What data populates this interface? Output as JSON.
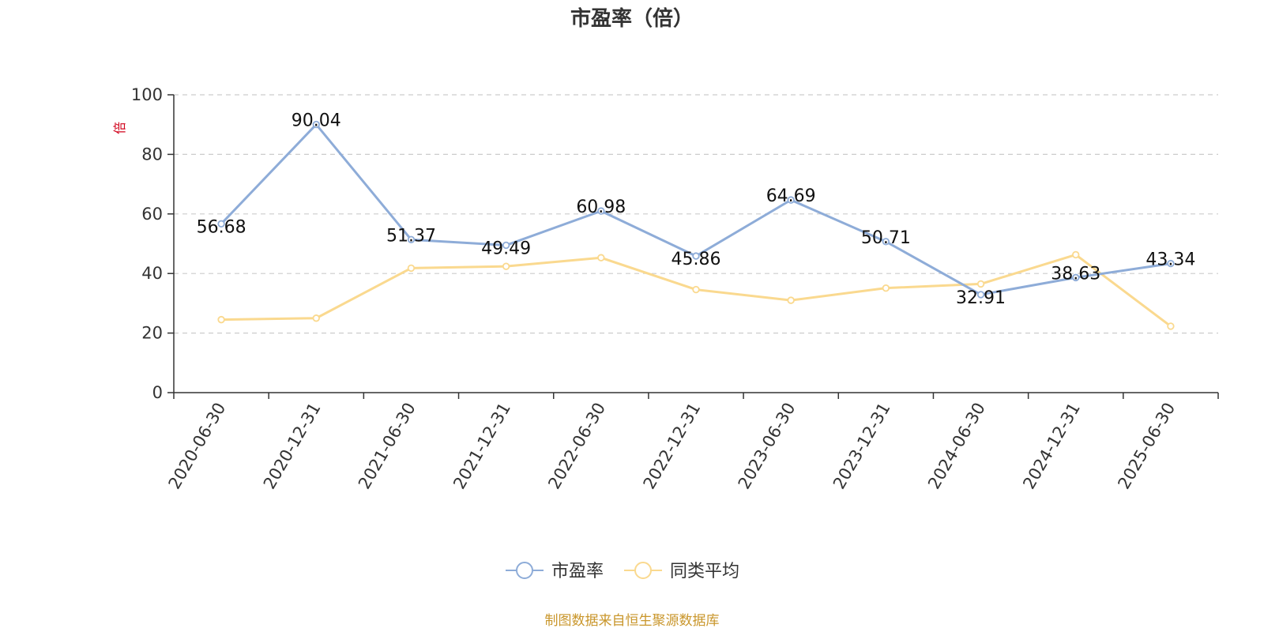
{
  "chart_data": {
    "type": "line",
    "title": "市盈率（倍）",
    "ylabel": "倍",
    "xlabel": "",
    "ylim": [
      0,
      100
    ],
    "yticks": [
      0,
      20,
      40,
      60,
      80,
      100
    ],
    "grid": true,
    "legend_position": "bottom",
    "categories": [
      "2020-06-30",
      "2020-12-31",
      "2021-06-30",
      "2021-12-31",
      "2022-06-30",
      "2022-12-31",
      "2023-06-30",
      "2023-12-31",
      "2024-06-30",
      "2024-12-31",
      "2025-06-30"
    ],
    "series": [
      {
        "name": "市盈率",
        "color": "#8eacd8",
        "show_labels": true,
        "values": [
          56.68,
          90.04,
          51.37,
          49.49,
          60.98,
          45.86,
          64.69,
          50.71,
          32.91,
          38.63,
          43.34
        ]
      },
      {
        "name": "同类平均",
        "color": "#fad98f",
        "show_labels": false,
        "values": [
          24.5,
          25.0,
          41.8,
          42.4,
          45.3,
          34.6,
          31.0,
          35.1,
          36.5,
          46.3,
          22.3
        ]
      }
    ]
  },
  "footer": {
    "source": "制图数据来自恒生聚源数据库"
  }
}
